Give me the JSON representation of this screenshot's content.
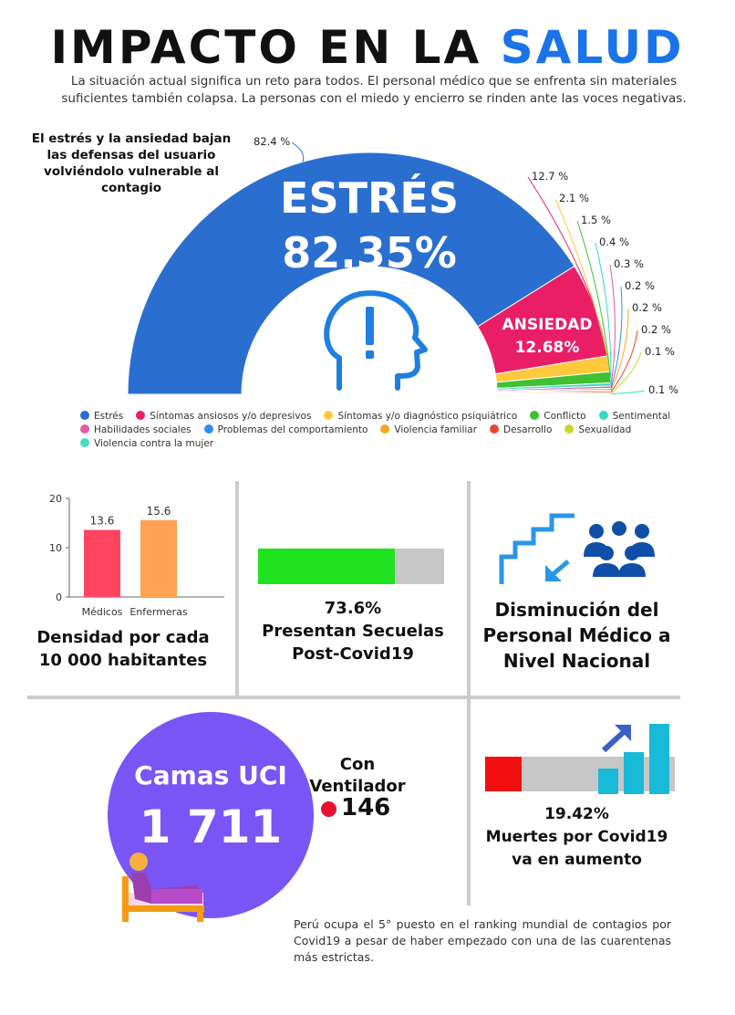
{
  "header": {
    "title_part1": "IMPACTO EN LA ",
    "title_part2": "SALUD",
    "intro": "La situación actual significa un reto para todos. El personal médico que se enfrenta sin materiales suficientes también colapsa. La personas con el miedo y encierro se rinden ante las voces negativas."
  },
  "stress_note": "El estrés y la ansiedad bajan las defensas del usuario volviéndolo vulnerable al contagio",
  "highlights": {
    "estres_name": "ESTRÉS",
    "estres_pct": "82.35%",
    "ansiedad_name": "ANSIEDAD",
    "ansiedad_pct": "12.68%"
  },
  "chart_data": [
    {
      "type": "pie",
      "variant": "half-donut",
      "categories": [
        "Estrés",
        "Síntomas ansiosos y/o depresivos",
        "Síntomas y/o diagnóstico psiquiátrico",
        "Conflicto",
        "Sentimental",
        "Habilidades sociales",
        "Problemas del comportamiento",
        "Violencia familiar",
        "Desarrollo",
        "Sexualidad",
        "Violencia contra la mujer"
      ],
      "values": [
        82.4,
        12.7,
        2.1,
        1.5,
        0.4,
        0.3,
        0.2,
        0.2,
        0.2,
        0.1,
        0.1
      ],
      "value_labels": [
        "82.4 %",
        "12.7 %",
        "2.1 %",
        "1.5 %",
        "0.4 %",
        "0.3 %",
        "0.2 %",
        "0.2 %",
        "0.2 %",
        "0.1 %",
        "0.1 %"
      ],
      "colors": [
        "#2a6fd0",
        "#ea1e66",
        "#ffc93c",
        "#40c032",
        "#3ad6c4",
        "#e85aa0",
        "#2f8ef0",
        "#f5a623",
        "#e8472f",
        "#cad62c",
        "#48dcc0"
      ],
      "legend": "bottom"
    },
    {
      "type": "bar",
      "categories": [
        "Médicos",
        "Enfermeras"
      ],
      "values": [
        13.6,
        15.6
      ],
      "value_labels": [
        "13.6",
        "15.6"
      ],
      "colors": [
        "#ff4560",
        "#ffa352"
      ],
      "yticks": [
        "0",
        "10",
        "20"
      ],
      "ylim": [
        0,
        20
      ],
      "title": "Densidad por cada 10 000 habitantes"
    }
  ],
  "secuelas": {
    "percent": 73.6,
    "pct_text": "73.6%",
    "text": "Presentan Secuelas Post-Covid19",
    "fill_color": "#1ee31e"
  },
  "personal": {
    "text": "Disminución del Personal Médico a Nivel Nacional",
    "icons": [
      "stairs-down-icon",
      "group-people-icon"
    ]
  },
  "uci": {
    "title": "Camas UCI",
    "value": "1 711",
    "vent_label": "Con Ventilador",
    "vent_value": "146",
    "icon": "patient-bed-icon"
  },
  "muertes": {
    "percent": 19.42,
    "pct_text": "19.42%",
    "text": "Muertes por Covid19 va en aumento",
    "fill_color": "#f20f0f",
    "icon": "rising-bars-icon"
  },
  "footer": "Perú ocupa el 5° puesto en el ranking mundial de contagios por Covid19 a pesar de haber empezado con una de las cuarentenas más estrictas."
}
